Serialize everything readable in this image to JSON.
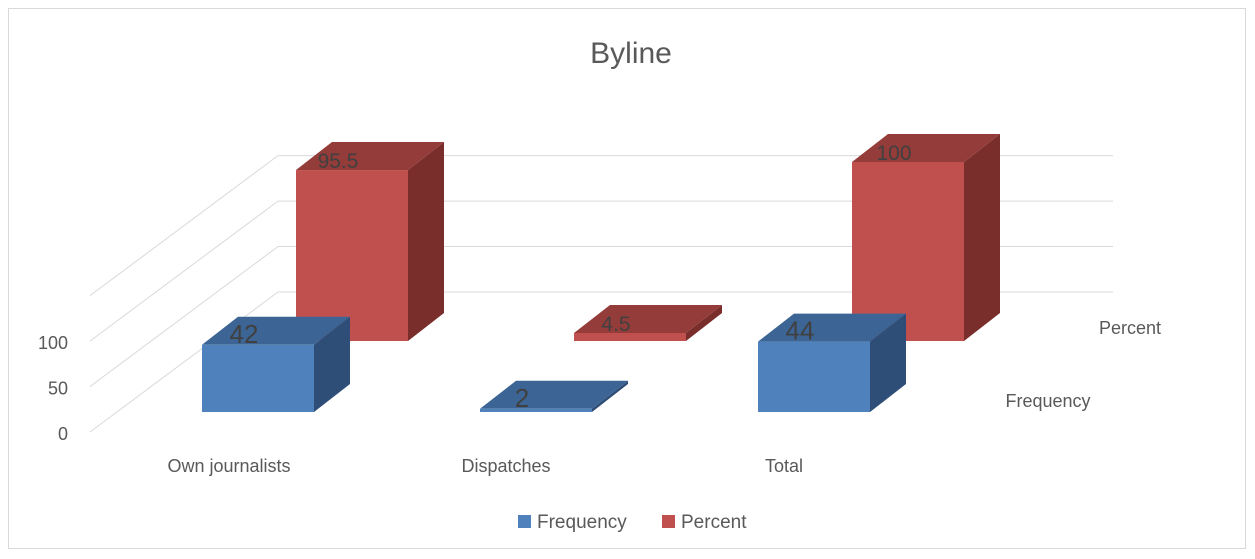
{
  "chart_data": {
    "type": "bar",
    "title": "Byline",
    "categories": [
      "Own journalists",
      "Dispatches",
      "Total"
    ],
    "series": [
      {
        "name": "Frequency",
        "values": [
          42,
          2,
          44
        ],
        "labels": [
          "42",
          "2",
          "44"
        ],
        "color": "#4f81bd",
        "side_color": "#2e4d77",
        "top_color": "#3c6494"
      },
      {
        "name": "Percent",
        "values": [
          95.5,
          4.5,
          100
        ],
        "labels": [
          "95.5",
          "4.5",
          "100"
        ],
        "color": "#c0504d",
        "side_color": "#7a2e2c",
        "top_color": "#943c3a"
      }
    ],
    "y_ticks": [
      "0",
      "50",
      "100"
    ],
    "ylim": [
      0,
      150
    ],
    "grid": true,
    "legend": "bottom",
    "view": "3d-column"
  }
}
